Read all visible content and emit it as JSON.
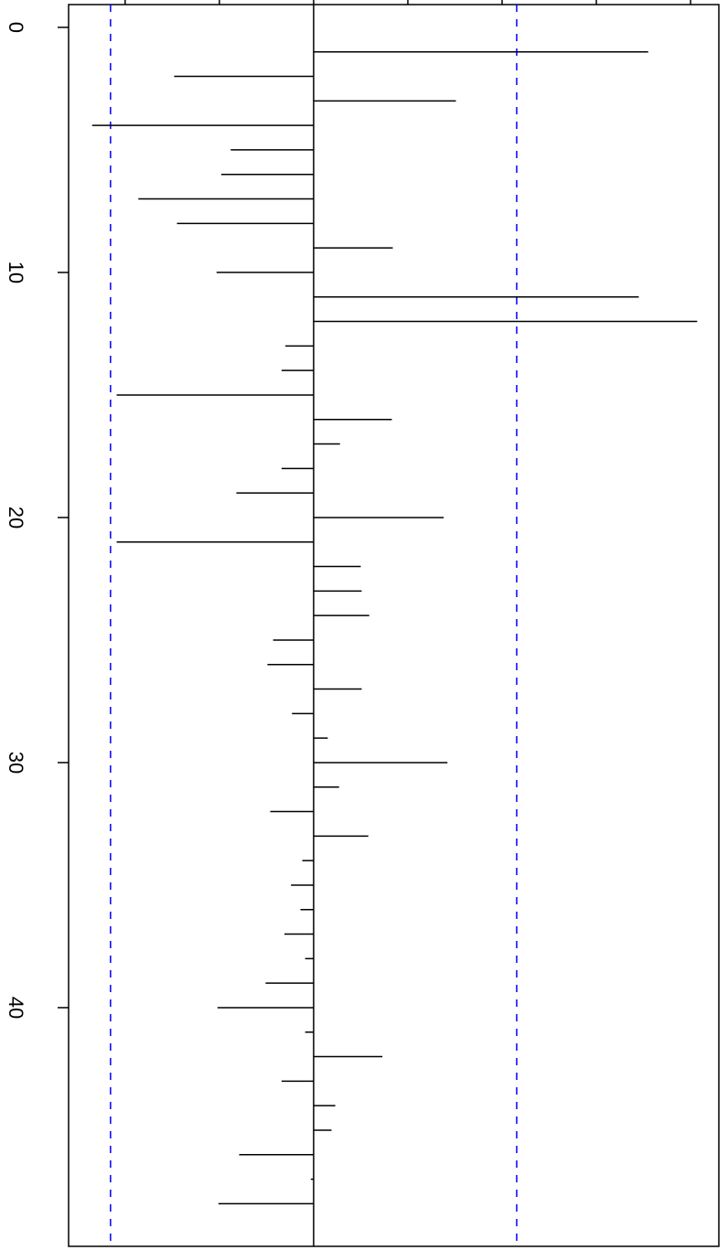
{
  "chart_data": {
    "type": "acf",
    "orientation": "horizontal",
    "x": [
      1,
      2,
      3,
      4,
      5,
      6,
      7,
      8,
      9,
      10,
      11,
      12,
      13,
      14,
      15,
      16,
      17,
      18,
      19,
      20,
      21,
      22,
      23,
      24,
      25,
      26,
      27,
      28,
      29,
      30,
      31,
      32,
      33,
      34,
      35,
      36,
      37,
      38,
      39,
      40,
      41,
      42,
      43,
      44,
      45,
      46,
      47,
      48
    ],
    "values": [
      0.355,
      -0.148,
      0.151,
      -0.235,
      -0.088,
      -0.098,
      -0.186,
      -0.145,
      0.084,
      -0.103,
      0.345,
      0.407,
      -0.03,
      -0.034,
      -0.209,
      0.083,
      0.028,
      -0.034,
      -0.082,
      0.138,
      -0.209,
      0.05,
      0.051,
      0.059,
      -0.043,
      -0.049,
      0.051,
      -0.023,
      0.015,
      0.142,
      0.027,
      -0.046,
      0.058,
      -0.012,
      -0.024,
      -0.014,
      -0.031,
      -0.009,
      -0.051,
      -0.102,
      -0.009,
      0.073,
      -0.034,
      0.023,
      0.019,
      -0.079,
      -0.003,
      -0.101
    ],
    "color": "#000000",
    "xlim": [
      -0.93,
      49.74
    ],
    "xticks": [
      0,
      10,
      20,
      30,
      40
    ],
    "ylim": [
      -0.26,
      0.43
    ],
    "yticks": [
      -0.2,
      -0.1,
      0,
      0.1,
      0.2,
      0.3,
      0.4
    ],
    "zero_line": 0,
    "ci_lines": [
      -0.2155,
      0.2155
    ],
    "ci_color": "#0000ff"
  }
}
